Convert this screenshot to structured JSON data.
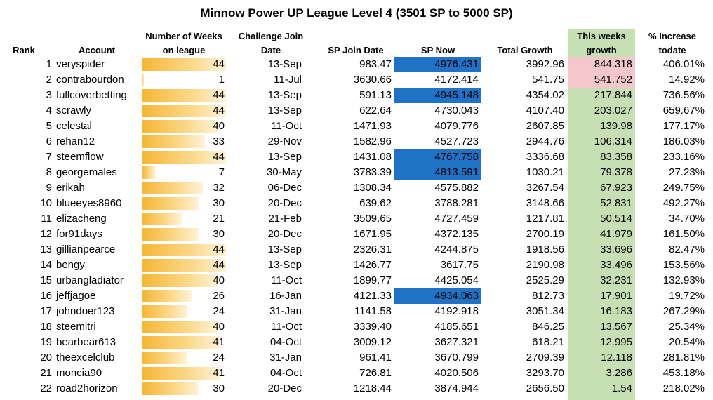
{
  "title": "Minnow Power UP League Level 4 (3501 SP to 5000 SP)",
  "headers": {
    "rank": "Rank",
    "account": "Account",
    "weeks_line1": "Number of Weeks",
    "weeks_line2": "on league",
    "join_line1": "Challenge Join",
    "join_line2": "Date",
    "sp_join": "SP Join Date",
    "sp_now": "SP Now",
    "total_growth": "Total Growth",
    "week_growth_line1": "This weeks",
    "week_growth_line2": "growth",
    "increase_line1": "% Increase",
    "increase_line2": "todate"
  },
  "colors": {
    "sp_now_highlight": "#1f72c6",
    "week_growth_highlight": "#f4c7cc",
    "week_growth_column": "#c6e0b4",
    "bar": "#f7b533"
  },
  "max_weeks": 44,
  "rows": [
    {
      "rank": "1",
      "account": "veryspider",
      "weeks": 44,
      "join": "13-Sep",
      "sp_join": "983.47",
      "sp_now": "4976.431",
      "sp_now_hl": true,
      "total_growth": "3992.96",
      "week_growth": "844.318",
      "week_growth_hl": true,
      "increase": "406.01%"
    },
    {
      "rank": "2",
      "account": "contrabourdon",
      "weeks": 1,
      "join": "11-Jul",
      "sp_join": "3630.66",
      "sp_now": "4172.414",
      "sp_now_hl": false,
      "total_growth": "541.75",
      "week_growth": "541.752",
      "week_growth_hl": true,
      "increase": "14.92%"
    },
    {
      "rank": "3",
      "account": "fullcoverbetting",
      "weeks": 44,
      "join": "13-Sep",
      "sp_join": "591.13",
      "sp_now": "4945.148",
      "sp_now_hl": true,
      "total_growth": "4354.02",
      "week_growth": "217.844",
      "week_growth_hl": false,
      "increase": "736.56%"
    },
    {
      "rank": "4",
      "account": "scrawly",
      "weeks": 44,
      "join": "13-Sep",
      "sp_join": "622.64",
      "sp_now": "4730.043",
      "sp_now_hl": false,
      "total_growth": "4107.40",
      "week_growth": "203.027",
      "week_growth_hl": false,
      "increase": "659.67%"
    },
    {
      "rank": "5",
      "account": "celestal",
      "weeks": 40,
      "join": "11-Oct",
      "sp_join": "1471.93",
      "sp_now": "4079.776",
      "sp_now_hl": false,
      "total_growth": "2607.85",
      "week_growth": "139.98",
      "week_growth_hl": false,
      "increase": "177.17%"
    },
    {
      "rank": "6",
      "account": "rehan12",
      "weeks": 33,
      "join": "29-Nov",
      "sp_join": "1582.96",
      "sp_now": "4527.723",
      "sp_now_hl": false,
      "total_growth": "2944.76",
      "week_growth": "106.314",
      "week_growth_hl": false,
      "increase": "186.03%"
    },
    {
      "rank": "7",
      "account": "steemflow",
      "weeks": 44,
      "join": "13-Sep",
      "sp_join": "1431.08",
      "sp_now": "4767.758",
      "sp_now_hl": true,
      "total_growth": "3336.68",
      "week_growth": "83.358",
      "week_growth_hl": false,
      "increase": "233.16%"
    },
    {
      "rank": "8",
      "account": "georgemales",
      "weeks": 7,
      "join": "30-May",
      "sp_join": "3783.39",
      "sp_now": "4813.591",
      "sp_now_hl": true,
      "total_growth": "1030.21",
      "week_growth": "79.378",
      "week_growth_hl": false,
      "increase": "27.23%"
    },
    {
      "rank": "9",
      "account": "erikah",
      "weeks": 32,
      "join": "06-Dec",
      "sp_join": "1308.34",
      "sp_now": "4575.882",
      "sp_now_hl": false,
      "total_growth": "3267.54",
      "week_growth": "67.923",
      "week_growth_hl": false,
      "increase": "249.75%"
    },
    {
      "rank": "10",
      "account": "blueeyes8960",
      "weeks": 30,
      "join": "20-Dec",
      "sp_join": "639.62",
      "sp_now": "3788.281",
      "sp_now_hl": false,
      "total_growth": "3148.66",
      "week_growth": "52.831",
      "week_growth_hl": false,
      "increase": "492.27%"
    },
    {
      "rank": "11",
      "account": "elizacheng",
      "weeks": 21,
      "join": "21-Feb",
      "sp_join": "3509.65",
      "sp_now": "4727.459",
      "sp_now_hl": false,
      "total_growth": "1217.81",
      "week_growth": "50.514",
      "week_growth_hl": false,
      "increase": "34.70%"
    },
    {
      "rank": "12",
      "account": "for91days",
      "weeks": 30,
      "join": "20-Dec",
      "sp_join": "1671.95",
      "sp_now": "4372.135",
      "sp_now_hl": false,
      "total_growth": "2700.19",
      "week_growth": "41.979",
      "week_growth_hl": false,
      "increase": "161.50%"
    },
    {
      "rank": "13",
      "account": "gillianpearce",
      "weeks": 44,
      "join": "13-Sep",
      "sp_join": "2326.31",
      "sp_now": "4244.875",
      "sp_now_hl": false,
      "total_growth": "1918.56",
      "week_growth": "33.696",
      "week_growth_hl": false,
      "increase": "82.47%"
    },
    {
      "rank": "14",
      "account": "bengy",
      "weeks": 44,
      "join": "13-Sep",
      "sp_join": "1426.77",
      "sp_now": "3617.75",
      "sp_now_hl": false,
      "total_growth": "2190.98",
      "week_growth": "33.496",
      "week_growth_hl": false,
      "increase": "153.56%"
    },
    {
      "rank": "15",
      "account": "urbangladiator",
      "weeks": 40,
      "join": "11-Oct",
      "sp_join": "1899.77",
      "sp_now": "4425.054",
      "sp_now_hl": false,
      "total_growth": "2525.29",
      "week_growth": "32.231",
      "week_growth_hl": false,
      "increase": "132.93%"
    },
    {
      "rank": "16",
      "account": "jeffjagoe",
      "weeks": 26,
      "join": "16-Jan",
      "sp_join": "4121.33",
      "sp_now": "4934.063",
      "sp_now_hl": true,
      "total_growth": "812.73",
      "week_growth": "17.901",
      "week_growth_hl": false,
      "increase": "19.72%"
    },
    {
      "rank": "17",
      "account": "johndoer123",
      "weeks": 24,
      "join": "31-Jan",
      "sp_join": "1141.58",
      "sp_now": "4192.918",
      "sp_now_hl": false,
      "total_growth": "3051.34",
      "week_growth": "16.183",
      "week_growth_hl": false,
      "increase": "267.29%"
    },
    {
      "rank": "18",
      "account": "steemitri",
      "weeks": 40,
      "join": "11-Oct",
      "sp_join": "3339.40",
      "sp_now": "4185.651",
      "sp_now_hl": false,
      "total_growth": "846.25",
      "week_growth": "13.567",
      "week_growth_hl": false,
      "increase": "25.34%"
    },
    {
      "rank": "19",
      "account": "bearbear613",
      "weeks": 41,
      "join": "04-Oct",
      "sp_join": "3009.12",
      "sp_now": "3627.321",
      "sp_now_hl": false,
      "total_growth": "618.21",
      "week_growth": "12.995",
      "week_growth_hl": false,
      "increase": "20.54%"
    },
    {
      "rank": "20",
      "account": "theexcelclub",
      "weeks": 24,
      "join": "31-Jan",
      "sp_join": "961.41",
      "sp_now": "3670.799",
      "sp_now_hl": false,
      "total_growth": "2709.39",
      "week_growth": "12.118",
      "week_growth_hl": false,
      "increase": "281.81%"
    },
    {
      "rank": "21",
      "account": "moncia90",
      "weeks": 41,
      "join": "04-Oct",
      "sp_join": "726.81",
      "sp_now": "4020.506",
      "sp_now_hl": false,
      "total_growth": "3293.70",
      "week_growth": "3.286",
      "week_growth_hl": false,
      "increase": "453.18%"
    },
    {
      "rank": "22",
      "account": "road2horizon",
      "weeks": 30,
      "join": "20-Dec",
      "sp_join": "1218.44",
      "sp_now": "3874.944",
      "sp_now_hl": false,
      "total_growth": "2656.50",
      "week_growth": "1.54",
      "week_growth_hl": false,
      "increase": "218.02%"
    }
  ]
}
